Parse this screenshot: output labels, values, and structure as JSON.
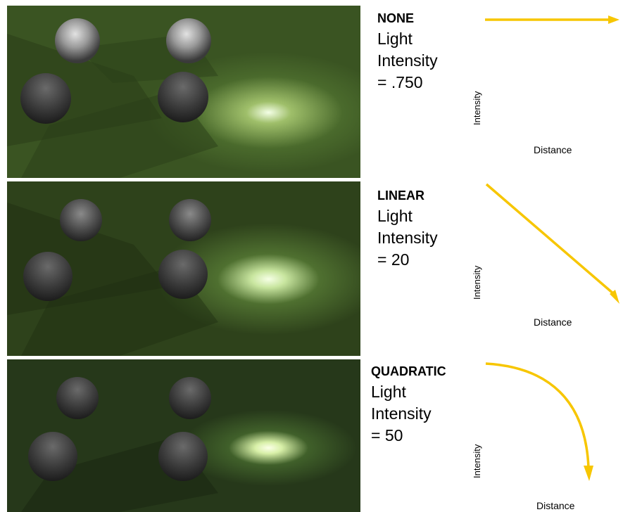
{
  "panels": [
    {
      "title": "NONE",
      "light_label": "Light",
      "intensity_label": "Intensity",
      "value": "= .750",
      "axis_y": "Intensity",
      "axis_x": "Distance",
      "falloff": "none"
    },
    {
      "title": "LINEAR",
      "light_label": "Light",
      "intensity_label": "Intensity",
      "value": "= 20",
      "axis_y": "Intensity",
      "axis_x": "Distance",
      "falloff": "linear"
    },
    {
      "title": "QUADRATIC",
      "light_label": "Light",
      "intensity_label": "Intensity",
      "value": "= 50",
      "axis_y": "Intensity",
      "axis_x": "Distance",
      "falloff": "quadratic"
    }
  ],
  "colors": {
    "curve": "#F7C600",
    "floor": "#3b5523",
    "glow": "#e8ffc8"
  }
}
